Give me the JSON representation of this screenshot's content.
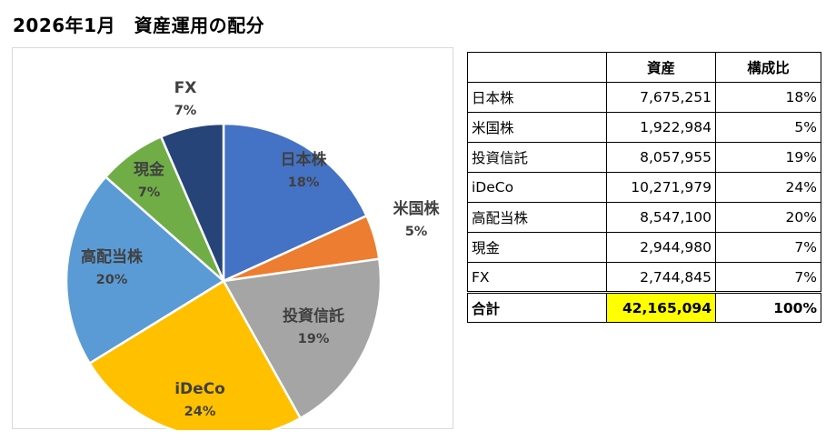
{
  "title": "2026年1月　資産運用の配分",
  "table": {
    "headers": [
      "",
      "資産",
      "構成比"
    ],
    "rows": [
      {
        "name": "日本株",
        "value": "7,675,251",
        "ratio": "18%"
      },
      {
        "name": "米国株",
        "value": "1,922,984",
        "ratio": "5%"
      },
      {
        "name": "投資信託",
        "value": "8,057,955",
        "ratio": "19%"
      },
      {
        "name": "iDeCo",
        "value": "10,271,979",
        "ratio": "24%"
      },
      {
        "name": "高配当株",
        "value": "8,547,100",
        "ratio": "20%"
      },
      {
        "name": "現金",
        "value": "2,944,980",
        "ratio": "7%"
      },
      {
        "name": "FX",
        "value": "2,744,845",
        "ratio": "7%"
      }
    ],
    "total": {
      "name": "合計",
      "value": "42,165,094",
      "ratio": "100%"
    }
  },
  "chart_data": {
    "type": "pie",
    "categories": [
      "日本株",
      "米国株",
      "投資信託",
      "iDeCo",
      "高配当株",
      "現金",
      "FX"
    ],
    "values": [
      7675251,
      1922984,
      8057955,
      10271979,
      8547100,
      2944980,
      2744845
    ],
    "percent_labels": [
      "18%",
      "5%",
      "19%",
      "24%",
      "20%",
      "7%",
      "7%"
    ],
    "colors": [
      "#4472c4",
      "#ed7d31",
      "#a5a5a5",
      "#ffc000",
      "#5b9bd5",
      "#70ad47",
      "#264478"
    ],
    "label_colors": [
      "#404040",
      "#404040",
      "#404040",
      "#404040",
      "#404040",
      "#404040",
      "#404040"
    ],
    "start": "12 o'clock",
    "direction": "clockwise",
    "legend": "none"
  }
}
